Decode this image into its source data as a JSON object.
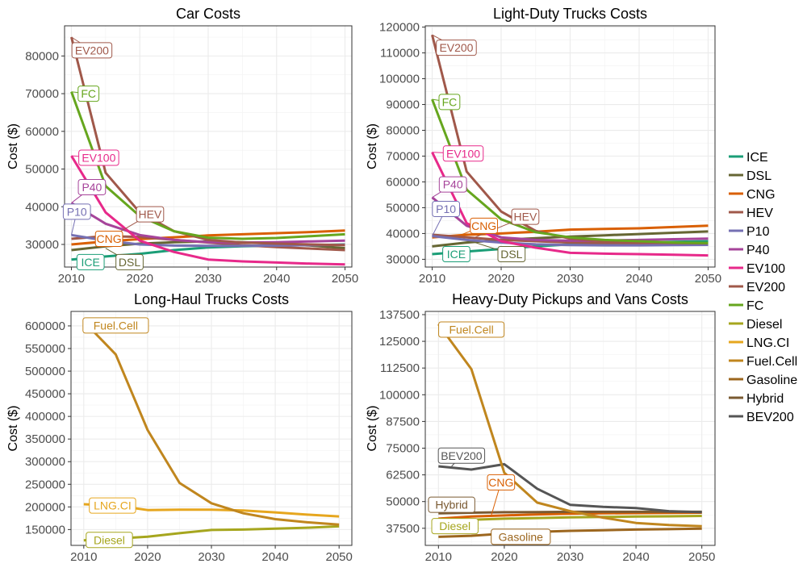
{
  "legend": {
    "position": "right",
    "entries": [
      {
        "name": "ICE",
        "color": "#1b9e77"
      },
      {
        "name": "DSL",
        "color": "#666633"
      },
      {
        "name": "CNG",
        "color": "#d95f02"
      },
      {
        "name": "HEV",
        "color": "#a0584a"
      },
      {
        "name": "P10",
        "color": "#7570b3"
      },
      {
        "name": "P40",
        "color": "#a6449a"
      },
      {
        "name": "EV100",
        "color": "#e7298a"
      },
      {
        "name": "EV200",
        "color": "#a0584a"
      },
      {
        "name": "FC",
        "color": "#66a61e"
      },
      {
        "name": "Diesel",
        "color": "#a6a61e"
      },
      {
        "name": "LNG.CI",
        "color": "#e6a61e"
      },
      {
        "name": "Fuel.Cell",
        "color": "#c0861e"
      },
      {
        "name": "Gasoline",
        "color": "#9c661e"
      },
      {
        "name": "Hybrid",
        "color": "#7a5a32"
      },
      {
        "name": "BEV200",
        "color": "#555555"
      }
    ]
  },
  "chart_data": [
    {
      "type": "line",
      "title": "Car Costs",
      "ylabel": "Cost ($)",
      "xlabel": "",
      "xlim": [
        2009,
        2051
      ],
      "ylim": [
        24000,
        88000
      ],
      "xticks": [
        2010,
        2020,
        2030,
        2040,
        2050
      ],
      "yticks": [
        30000,
        40000,
        50000,
        60000,
        70000,
        80000
      ],
      "grid": true,
      "x": [
        2010,
        2015,
        2020,
        2025,
        2030,
        2035,
        2040,
        2045,
        2050
      ],
      "series": [
        {
          "name": "ICE",
          "color": "#1b9e77",
          "values": [
            26000,
            26800,
            27500,
            28500,
            29200,
            29500,
            29700,
            29800,
            30000
          ]
        },
        {
          "name": "DSL",
          "color": "#666633",
          "values": [
            28500,
            29500,
            30200,
            30600,
            30800,
            30600,
            30200,
            29700,
            29000
          ]
        },
        {
          "name": "CNG",
          "color": "#d95f02",
          "values": [
            30000,
            30800,
            31400,
            31900,
            32400,
            32700,
            33000,
            33300,
            33700
          ]
        },
        {
          "name": "HEV",
          "color": "#a0584a",
          "values": [
            31500,
            32200,
            32000,
            31200,
            30500,
            29800,
            29300,
            28900,
            28500
          ]
        },
        {
          "name": "P10",
          "color": "#7570b3",
          "values": [
            32500,
            31000,
            30000,
            29700,
            29600,
            29600,
            29700,
            29800,
            29900
          ]
        },
        {
          "name": "P40",
          "color": "#a6449a",
          "values": [
            41000,
            35500,
            32500,
            31200,
            30600,
            30500,
            30600,
            30800,
            31000
          ]
        },
        {
          "name": "EV100",
          "color": "#e7298a",
          "values": [
            53500,
            38500,
            31000,
            28000,
            26000,
            25500,
            25200,
            24900,
            24700
          ]
        },
        {
          "name": "EV200",
          "color": "#a0584a",
          "values": [
            85000,
            49000,
            38500,
            33500,
            31200,
            30500,
            30200,
            30000,
            29800
          ]
        },
        {
          "name": "FC",
          "color": "#66a61e",
          "values": [
            70500,
            45500,
            37500,
            33500,
            31800,
            31500,
            31700,
            32200,
            32700
          ]
        }
      ],
      "annotations": [
        {
          "text": "EV200",
          "x": 2013,
          "y": 81500,
          "color": "#a0584a",
          "target_x": 2010,
          "target_y": 85000
        },
        {
          "text": "FC",
          "x": 2012.5,
          "y": 70000,
          "color": "#66a61e",
          "target_x": 2010,
          "target_y": 70500
        },
        {
          "text": "EV100",
          "x": 2014,
          "y": 53000,
          "color": "#e7298a",
          "target_x": 2010,
          "target_y": 53500
        },
        {
          "text": "P40",
          "x": 2013,
          "y": 45200,
          "color": "#a6449a",
          "target_x": 2010,
          "target_y": 41000
        },
        {
          "text": "P10",
          "x": 2010.8,
          "y": 38700,
          "color": "#7570b3",
          "target_x": 2010,
          "target_y": 32500
        },
        {
          "text": "HEV",
          "x": 2021.5,
          "y": 38000,
          "color": "#a0584a",
          "target_x": 2016,
          "target_y": 32200
        },
        {
          "text": "CNG",
          "x": 2015.5,
          "y": 31500,
          "color": "#d95f02",
          "target_x": 2013,
          "target_y": 30500
        },
        {
          "text": "ICE",
          "x": 2012.8,
          "y": 25300,
          "color": "#1b9e77",
          "target_x": 2011.5,
          "target_y": 26200
        },
        {
          "text": "DSL",
          "x": 2018.5,
          "y": 25300,
          "color": "#666633",
          "target_x": 2015,
          "target_y": 29000
        }
      ]
    },
    {
      "type": "line",
      "title": "Light-Duty Trucks Costs",
      "ylabel": "Cost ($)",
      "xlabel": "",
      "xlim": [
        2009,
        2051
      ],
      "ylim": [
        27000,
        120500
      ],
      "xticks": [
        2010,
        2020,
        2030,
        2040,
        2050
      ],
      "yticks": [
        30000,
        40000,
        50000,
        60000,
        70000,
        80000,
        90000,
        100000,
        110000,
        120000
      ],
      "grid": true,
      "x": [
        2010,
        2015,
        2020,
        2025,
        2030,
        2035,
        2040,
        2045,
        2050
      ],
      "series": [
        {
          "name": "ICE",
          "color": "#1b9e77",
          "values": [
            32000,
            33000,
            34000,
            35000,
            35800,
            36200,
            36500,
            36800,
            37000
          ]
        },
        {
          "name": "DSL",
          "color": "#666633",
          "values": [
            35000,
            36500,
            37500,
            38200,
            38800,
            39300,
            39800,
            40300,
            40800
          ]
        },
        {
          "name": "CNG",
          "color": "#d95f02",
          "values": [
            38500,
            39500,
            40000,
            40700,
            41500,
            41800,
            42000,
            42500,
            43000
          ]
        },
        {
          "name": "HEV",
          "color": "#a0584a",
          "values": [
            39500,
            38500,
            37500,
            37000,
            36500,
            36300,
            36200,
            36100,
            36000
          ]
        },
        {
          "name": "P10",
          "color": "#7570b3",
          "values": [
            39000,
            37500,
            36500,
            35800,
            35500,
            35400,
            35400,
            35500,
            35600
          ]
        },
        {
          "name": "P40",
          "color": "#a6449a",
          "values": [
            54000,
            43000,
            38500,
            37500,
            37200,
            37300,
            37500,
            37800,
            38000
          ]
        },
        {
          "name": "EV100",
          "color": "#e7298a",
          "values": [
            71500,
            44000,
            37000,
            34500,
            32500,
            32200,
            32000,
            31800,
            31500
          ]
        },
        {
          "name": "EV200",
          "color": "#a0584a",
          "values": [
            117000,
            64000,
            48500,
            41000,
            38000,
            37000,
            36500,
            36300,
            36200
          ]
        },
        {
          "name": "FC",
          "color": "#66a61e",
          "values": [
            92000,
            57000,
            45500,
            40500,
            38500,
            37500,
            37000,
            36500,
            36300
          ]
        }
      ],
      "annotations": [
        {
          "text": "EV200",
          "x": 2013.5,
          "y": 112000,
          "color": "#a0584a",
          "target_x": 2010,
          "target_y": 117000
        },
        {
          "text": "FC",
          "x": 2012.5,
          "y": 91000,
          "color": "#66a61e",
          "target_x": 2010,
          "target_y": 92000
        },
        {
          "text": "EV100",
          "x": 2014.5,
          "y": 71000,
          "color": "#e7298a",
          "target_x": 2010,
          "target_y": 71500
        },
        {
          "text": "P40",
          "x": 2013,
          "y": 59000,
          "color": "#a6449a",
          "target_x": 2010,
          "target_y": 54000
        },
        {
          "text": "P10",
          "x": 2012,
          "y": 49500,
          "color": "#7570b3",
          "target_x": 2010,
          "target_y": 39000
        },
        {
          "text": "HEV",
          "x": 2023.5,
          "y": 46500,
          "color": "#a0584a",
          "target_x": 2016,
          "target_y": 38300
        },
        {
          "text": "CNG",
          "x": 2017.5,
          "y": 43000,
          "color": "#d95f02",
          "target_x": 2014,
          "target_y": 39300
        },
        {
          "text": "ICE",
          "x": 2013.5,
          "y": 32000,
          "color": "#1b9e77",
          "target_x": 2012,
          "target_y": 32500
        },
        {
          "text": "DSL",
          "x": 2021.5,
          "y": 32000,
          "color": "#666633",
          "target_x": 2016,
          "target_y": 36700
        }
      ]
    },
    {
      "type": "line",
      "title": "Long-Haul Trucks Costs",
      "ylabel": "Cost ($)",
      "xlabel": "",
      "xlim": [
        2008,
        2052
      ],
      "ylim": [
        115000,
        632000
      ],
      "xticks": [
        2010,
        2020,
        2030,
        2040,
        2050
      ],
      "yticks": [
        150000,
        200000,
        250000,
        300000,
        350000,
        400000,
        450000,
        500000,
        550000,
        600000
      ],
      "grid": true,
      "x": [
        2010,
        2015,
        2020,
        2025,
        2030,
        2035,
        2040,
        2045,
        2050
      ],
      "series": [
        {
          "name": "Diesel",
          "color": "#a6a61e",
          "values": [
            126000,
            130000,
            134000,
            142000,
            149000,
            150000,
            152000,
            154000,
            157000
          ]
        },
        {
          "name": "LNG.CI",
          "color": "#e6a61e",
          "values": [
            206000,
            203000,
            193000,
            194000,
            194000,
            192000,
            188000,
            183000,
            179000
          ]
        },
        {
          "name": "Fuel.Cell",
          "color": "#c0861e",
          "values": [
            610000,
            537000,
            370000,
            253000,
            208000,
            186000,
            173000,
            166000,
            161000
          ]
        }
      ],
      "annotations": [
        {
          "text": "Fuel.Cell",
          "x": 2015,
          "y": 601000,
          "color": "#c0861e",
          "target_x": 2010.5,
          "target_y": 607000
        },
        {
          "text": "LNG.CI",
          "x": 2014.5,
          "y": 203000,
          "color": "#e6a61e",
          "target_x": 2010.5,
          "target_y": 205000
        },
        {
          "text": "Diesel",
          "x": 2014,
          "y": 127000,
          "color": "#a6a61e",
          "target_x": 2010.5,
          "target_y": 126000
        }
      ]
    },
    {
      "type": "line",
      "title": "Heavy-Duty Pickups and Vans Costs",
      "ylabel": "Cost ($)",
      "xlabel": "",
      "xlim": [
        2008,
        2052
      ],
      "ylim": [
        29500,
        139000
      ],
      "xticks": [
        2010,
        2020,
        2030,
        2040,
        2050
      ],
      "yticks": [
        37500,
        50000,
        62500,
        75000,
        87500,
        100000,
        112500,
        125000,
        137500
      ],
      "grid": true,
      "x": [
        2010,
        2015,
        2020,
        2025,
        2030,
        2035,
        2040,
        2045,
        2050
      ],
      "series": [
        {
          "name": "Diesel",
          "color": "#a6a61e",
          "values": [
            41000,
            41500,
            42000,
            42300,
            42600,
            42800,
            43000,
            43100,
            43300
          ]
        },
        {
          "name": "CNG",
          "color": "#d95f02",
          "values": [
            42000,
            43000,
            43500,
            44000,
            44300,
            44500,
            44600,
            44700,
            44800
          ]
        },
        {
          "name": "Gasoline",
          "color": "#9c661e",
          "values": [
            33500,
            34000,
            35000,
            35800,
            36300,
            36600,
            36900,
            37100,
            37300
          ]
        },
        {
          "name": "Hybrid",
          "color": "#7a5a32",
          "values": [
            44500,
            44800,
            45000,
            45100,
            45200,
            45200,
            45200,
            45200,
            45200
          ]
        },
        {
          "name": "BEV200",
          "color": "#555555",
          "values": [
            66500,
            65000,
            67500,
            56000,
            48500,
            47500,
            47000,
            45500,
            45000
          ]
        },
        {
          "name": "Fuel.Cell",
          "color": "#c0861e",
          "values": [
            133000,
            112000,
            63500,
            49500,
            45500,
            42500,
            40000,
            39000,
            38500
          ]
        }
      ],
      "annotations": [
        {
          "text": "Fuel.Cell",
          "x": 2015,
          "y": 130500,
          "color": "#c0861e",
          "target_x": 2010.5,
          "target_y": 132000
        },
        {
          "text": "BEV200",
          "x": 2013.5,
          "y": 71500,
          "color": "#555555",
          "target_x": 2012,
          "target_y": 66500
        },
        {
          "text": "CNG",
          "x": 2019.5,
          "y": 59000,
          "color": "#d95f02",
          "target_x": 2018,
          "target_y": 43300
        },
        {
          "text": "Hybrid",
          "x": 2012,
          "y": 48500,
          "color": "#7a5a32",
          "target_x": 2012,
          "target_y": 44700
        },
        {
          "text": "Diesel",
          "x": 2012.5,
          "y": 38500,
          "color": "#a6a61e",
          "target_x": 2011,
          "target_y": 41100
        },
        {
          "text": "Gasoline",
          "x": 2022.5,
          "y": 33500,
          "color": "#9c661e",
          "target_x": 2018,
          "target_y": 34600
        }
      ]
    }
  ]
}
